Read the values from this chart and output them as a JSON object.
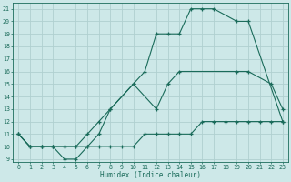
{
  "xlabel": "Humidex (Indice chaleur)",
  "background_color": "#cde8e8",
  "grid_color": "#b0d0d0",
  "line_color": "#1a6b5a",
  "xlim": [
    -0.5,
    23.5
  ],
  "ylim": [
    8.8,
    21.5
  ],
  "yticks": [
    9,
    10,
    11,
    12,
    13,
    14,
    15,
    16,
    17,
    18,
    19,
    20,
    21
  ],
  "xticks": [
    0,
    1,
    2,
    3,
    4,
    5,
    6,
    7,
    8,
    9,
    10,
    11,
    12,
    13,
    14,
    15,
    16,
    17,
    18,
    19,
    20,
    21,
    22,
    23
  ],
  "curve1_x": [
    0,
    1,
    2,
    3,
    4,
    5,
    6,
    7,
    8,
    10,
    11,
    12,
    13,
    14,
    15,
    16,
    17,
    19,
    20,
    23
  ],
  "curve1_y": [
    11,
    10,
    10,
    10,
    9,
    9,
    10,
    11,
    13,
    15,
    16,
    19,
    19,
    19,
    21,
    21,
    21,
    20,
    20,
    12
  ],
  "curve2_x": [
    0,
    1,
    2,
    3,
    4,
    5,
    6,
    7,
    8,
    10,
    12,
    13,
    14,
    19,
    20,
    22,
    23
  ],
  "curve2_y": [
    11,
    10,
    10,
    10,
    10,
    10,
    11,
    12,
    13,
    15,
    13,
    15,
    16,
    16,
    16,
    15,
    13
  ],
  "curve3_x": [
    0,
    1,
    2,
    3,
    4,
    5,
    6,
    7,
    8,
    9,
    10,
    11,
    12,
    13,
    14,
    15,
    16,
    17,
    18,
    19,
    20,
    21,
    22,
    23
  ],
  "curve3_y": [
    11,
    10,
    10,
    10,
    10,
    10,
    10,
    10,
    10,
    10,
    10,
    11,
    11,
    11,
    11,
    11,
    12,
    12,
    12,
    12,
    12,
    12,
    12,
    12
  ]
}
